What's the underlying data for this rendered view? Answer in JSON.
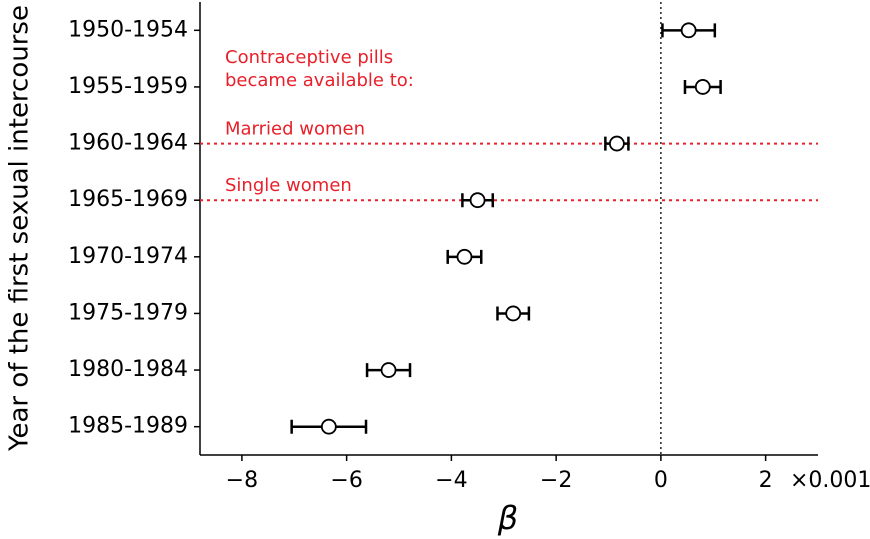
{
  "chart_data": {
    "type": "errorbar",
    "y_label": "Year of the first sexual intercourse",
    "x_label": "β",
    "x_offset_label": "×0.001",
    "categories": [
      "1950-1954",
      "1955-1959",
      "1960-1964",
      "1965-1969",
      "1970-1974",
      "1975-1979",
      "1980-1984",
      "1985-1989"
    ],
    "series": [
      {
        "color": "#000000",
        "values": [
          0.53,
          0.8,
          -0.84,
          -3.5,
          -3.75,
          -2.82,
          -5.2,
          -6.34
        ],
        "errors": [
          0.5,
          0.34,
          0.22,
          0.29,
          0.32,
          0.3,
          0.41,
          0.71
        ]
      }
    ],
    "xlim": [
      -8.8,
      3
    ],
    "xticks": [
      {
        "value": -8,
        "label": "−8"
      },
      {
        "value": -6,
        "label": "−6"
      },
      {
        "value": -4,
        "label": "−4"
      },
      {
        "value": -2,
        "label": "−2"
      },
      0,
      2
    ],
    "vline": 0,
    "annotation": [
      "Contraceptive pills",
      "became available to:"
    ],
    "hlines": [
      {
        "at": "1960-1964",
        "label": "Married women",
        "color": "#e8202a"
      },
      {
        "at": "1965-1969",
        "label": "Single women",
        "color": "#e8202a"
      }
    ]
  }
}
